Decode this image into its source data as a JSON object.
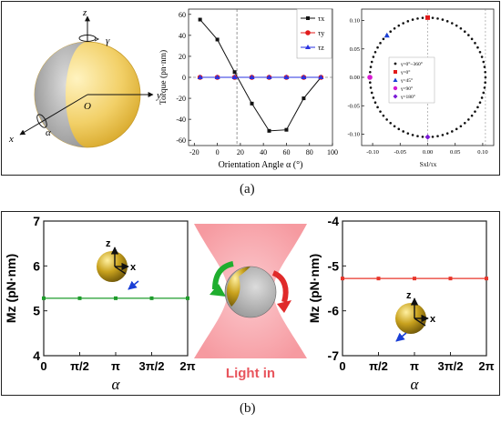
{
  "figure": {
    "caption_a": "(a)",
    "caption_b": "(b)"
  },
  "sphere_sketch": {
    "axis_x": "x",
    "axis_y": "y",
    "axis_z": "z",
    "origin": "O",
    "angle_alpha": "α",
    "angle_gamma": "γ"
  },
  "light_in_label": "Light in",
  "colors": {
    "gold": "#f2d068",
    "gray": "#b0b0b0",
    "tau_x": "#111111",
    "tau_y": "#e11b1b",
    "tau_z": "#2a32e0",
    "mz_line": "#1e9c2b",
    "mz_line_right": "#e8352a",
    "beam": "#f58f96"
  },
  "chart_data": [
    {
      "type": "line",
      "xlabel": "Orientation Angle α (°)",
      "ylabel": "Torque (pn·nm)",
      "xlim": [
        -25,
        100
      ],
      "ylim": [
        -65,
        65
      ],
      "xticks": [
        -20,
        0,
        20,
        40,
        60,
        80,
        100
      ],
      "yticks": [
        -60,
        -40,
        -20,
        0,
        20,
        40,
        60
      ],
      "vertical_guide_x": 17,
      "legend_position": "top-right",
      "series": [
        {
          "name": "τx",
          "x": [
            -15,
            0,
            15,
            30,
            45,
            60,
            75,
            90
          ],
          "values": [
            55,
            36,
            5,
            -25,
            -51,
            -50,
            -20,
            0
          ]
        },
        {
          "name": "τy",
          "x": [
            -15,
            0,
            15,
            30,
            45,
            60,
            75,
            90
          ],
          "values": [
            0,
            0,
            0,
            0,
            0,
            0,
            0,
            0
          ]
        },
        {
          "name": "τz",
          "x": [
            -15,
            0,
            15,
            30,
            45,
            60,
            75,
            90
          ],
          "values": [
            0,
            0,
            0,
            0,
            0,
            0,
            0,
            0
          ]
        }
      ]
    },
    {
      "type": "scatter",
      "xlabel": "Sxl/τx",
      "ylabel": "",
      "xlim": [
        -0.12,
        0.12
      ],
      "ylim": [
        -0.12,
        0.12
      ],
      "xticks": [
        -0.1,
        -0.05,
        0.0,
        0.05,
        0.1
      ],
      "yticks": [
        -0.1,
        -0.05,
        0.0,
        0.05,
        0.1
      ],
      "xtick_labels": [
        "-0.10",
        "-0.05",
        "0.00",
        "0.05",
        "0.10"
      ],
      "ytick_labels": [
        "-0.10",
        "-0.05",
        "0.00",
        "0.05",
        "0.10"
      ],
      "legend_position": "center-left",
      "circle_radius": 0.105,
      "circle_points": 72,
      "series": [
        {
          "name": "γ=0°~360°",
          "x": [],
          "values": []
        },
        {
          "name": "γ=0°",
          "x": [
            0.0
          ],
          "values": [
            0.105
          ]
        },
        {
          "name": "γ=45°",
          "x": [
            -0.074
          ],
          "values": [
            0.074
          ]
        },
        {
          "name": "γ=90°",
          "x": [
            -0.105
          ],
          "values": [
            0.0
          ]
        },
        {
          "name": "γ=180°",
          "x": [
            0.0
          ],
          "values": [
            -0.105
          ]
        }
      ]
    },
    {
      "type": "line",
      "xlabel": "α",
      "ylabel": "Mz (pN·nm)",
      "xlim": [
        0,
        6.2832
      ],
      "ylim": [
        4,
        7
      ],
      "yticks": [
        4,
        5,
        6,
        7
      ],
      "xtick_labels": [
        "0",
        "π/2",
        "π",
        "3π/2",
        "2π"
      ],
      "series": [
        {
          "x": [
            0,
            1.5708,
            3.1416,
            4.7124,
            6.2832
          ],
          "values": [
            5.28,
            5.28,
            5.28,
            5.28,
            5.28
          ]
        }
      ]
    },
    {
      "type": "line",
      "xlabel": "α",
      "ylabel": "Mz (pN·nm)",
      "xlim": [
        0,
        6.2832
      ],
      "ylim": [
        -7,
        -4
      ],
      "yticks": [
        -7,
        -6,
        -5,
        -4
      ],
      "xtick_labels": [
        "0",
        "π/2",
        "π",
        "3π/2",
        "2π"
      ],
      "series": [
        {
          "x": [
            0,
            1.5708,
            3.1416,
            4.7124,
            6.2832
          ],
          "values": [
            -5.28,
            -5.28,
            -5.28,
            -5.28,
            -5.28
          ]
        }
      ]
    }
  ]
}
